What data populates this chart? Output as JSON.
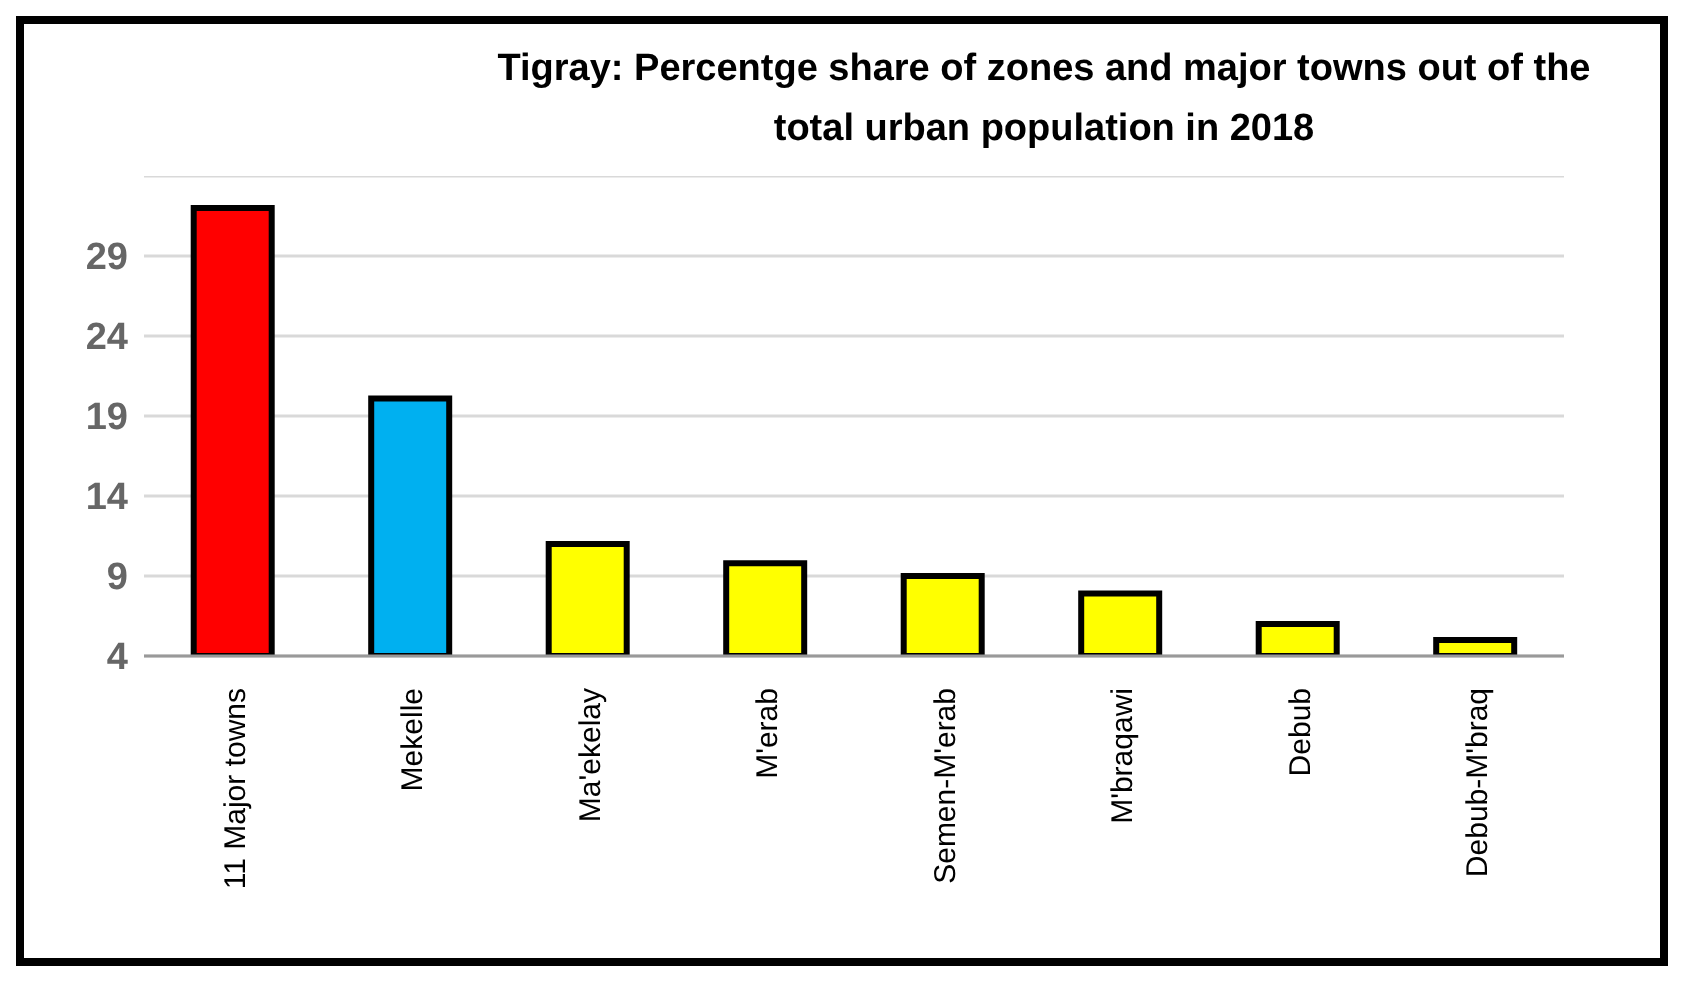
{
  "chart_data": {
    "type": "bar",
    "title": "Tigray: Percentge share of zones and major towns out of the total urban population  in 2018",
    "categories": [
      "11 Major towns",
      "Mekelle",
      "Ma'ekelay",
      "M'erab",
      "Semen-M'erab",
      "M'braqawi",
      "Debub",
      "Debub-M'braq"
    ],
    "values": [
      32.0,
      20.1,
      11.0,
      9.8,
      9.0,
      7.9,
      6.0,
      5.0
    ],
    "colors": [
      "#ff0000",
      "#00b0f0",
      "#ffff00",
      "#ffff00",
      "#ffff00",
      "#ffff00",
      "#ffff00",
      "#ffff00"
    ],
    "ylim": [
      4,
      34
    ],
    "yticks": [
      4,
      9,
      14,
      19,
      24,
      29
    ],
    "grid": "y"
  }
}
